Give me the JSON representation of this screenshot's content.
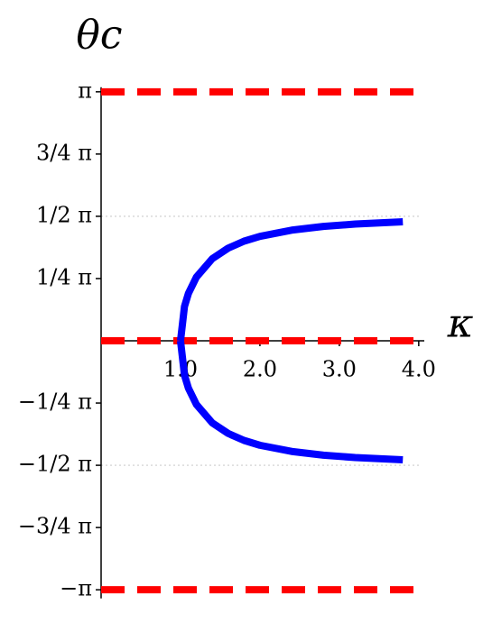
{
  "chart_data": {
    "type": "line",
    "y_label": "θc",
    "x_label": "κ",
    "xlim": [
      0,
      4.07
    ],
    "ylim": [
      -3.25,
      3.2
    ],
    "xticks": [
      {
        "value": 1,
        "label": "1.0"
      },
      {
        "value": 2,
        "label": "2.0"
      },
      {
        "value": 3,
        "label": "3.0"
      },
      {
        "value": 4,
        "label": "4.0"
      }
    ],
    "yticks": [
      {
        "value": 3.14159,
        "label": "π"
      },
      {
        "value": 2.35619,
        "label": "3/4 π"
      },
      {
        "value": 1.5708,
        "label": "1/2 π"
      },
      {
        "value": 0.7854,
        "label": "1/4 π"
      },
      {
        "value": -0.7854,
        "label": "−1/4 π"
      },
      {
        "value": -1.5708,
        "label": "−1/2 π"
      },
      {
        "value": -2.35619,
        "label": "−3/4 π"
      },
      {
        "value": -3.14159,
        "label": "−π"
      }
    ],
    "series": [
      {
        "color": "#0000ff",
        "x": [
          1,
          1.05,
          1.1,
          1.2,
          1.4,
          1.6,
          1.8,
          2.0,
          2.4,
          2.8,
          3.2,
          3.8
        ],
        "values": [
          0,
          0.434,
          0.599,
          0.803,
          1.036,
          1.169,
          1.257,
          1.318,
          1.396,
          1.443,
          1.473,
          1.501
        ]
      },
      {
        "color": "#0000ff",
        "x": [
          1,
          1.05,
          1.1,
          1.2,
          1.4,
          1.6,
          1.8,
          2.0,
          2.4,
          2.8,
          3.2,
          3.8
        ],
        "values": [
          0,
          -0.434,
          -0.599,
          -0.803,
          -1.036,
          -1.169,
          -1.257,
          -1.318,
          -1.396,
          -1.443,
          -1.473,
          -1.501
        ]
      }
    ],
    "hlines": {
      "color": "#ff0000",
      "values": [
        3.14159,
        0,
        -3.14159
      ]
    },
    "guides": {
      "color": "#cccccc",
      "values": [
        1.5708,
        -1.5708
      ]
    }
  }
}
